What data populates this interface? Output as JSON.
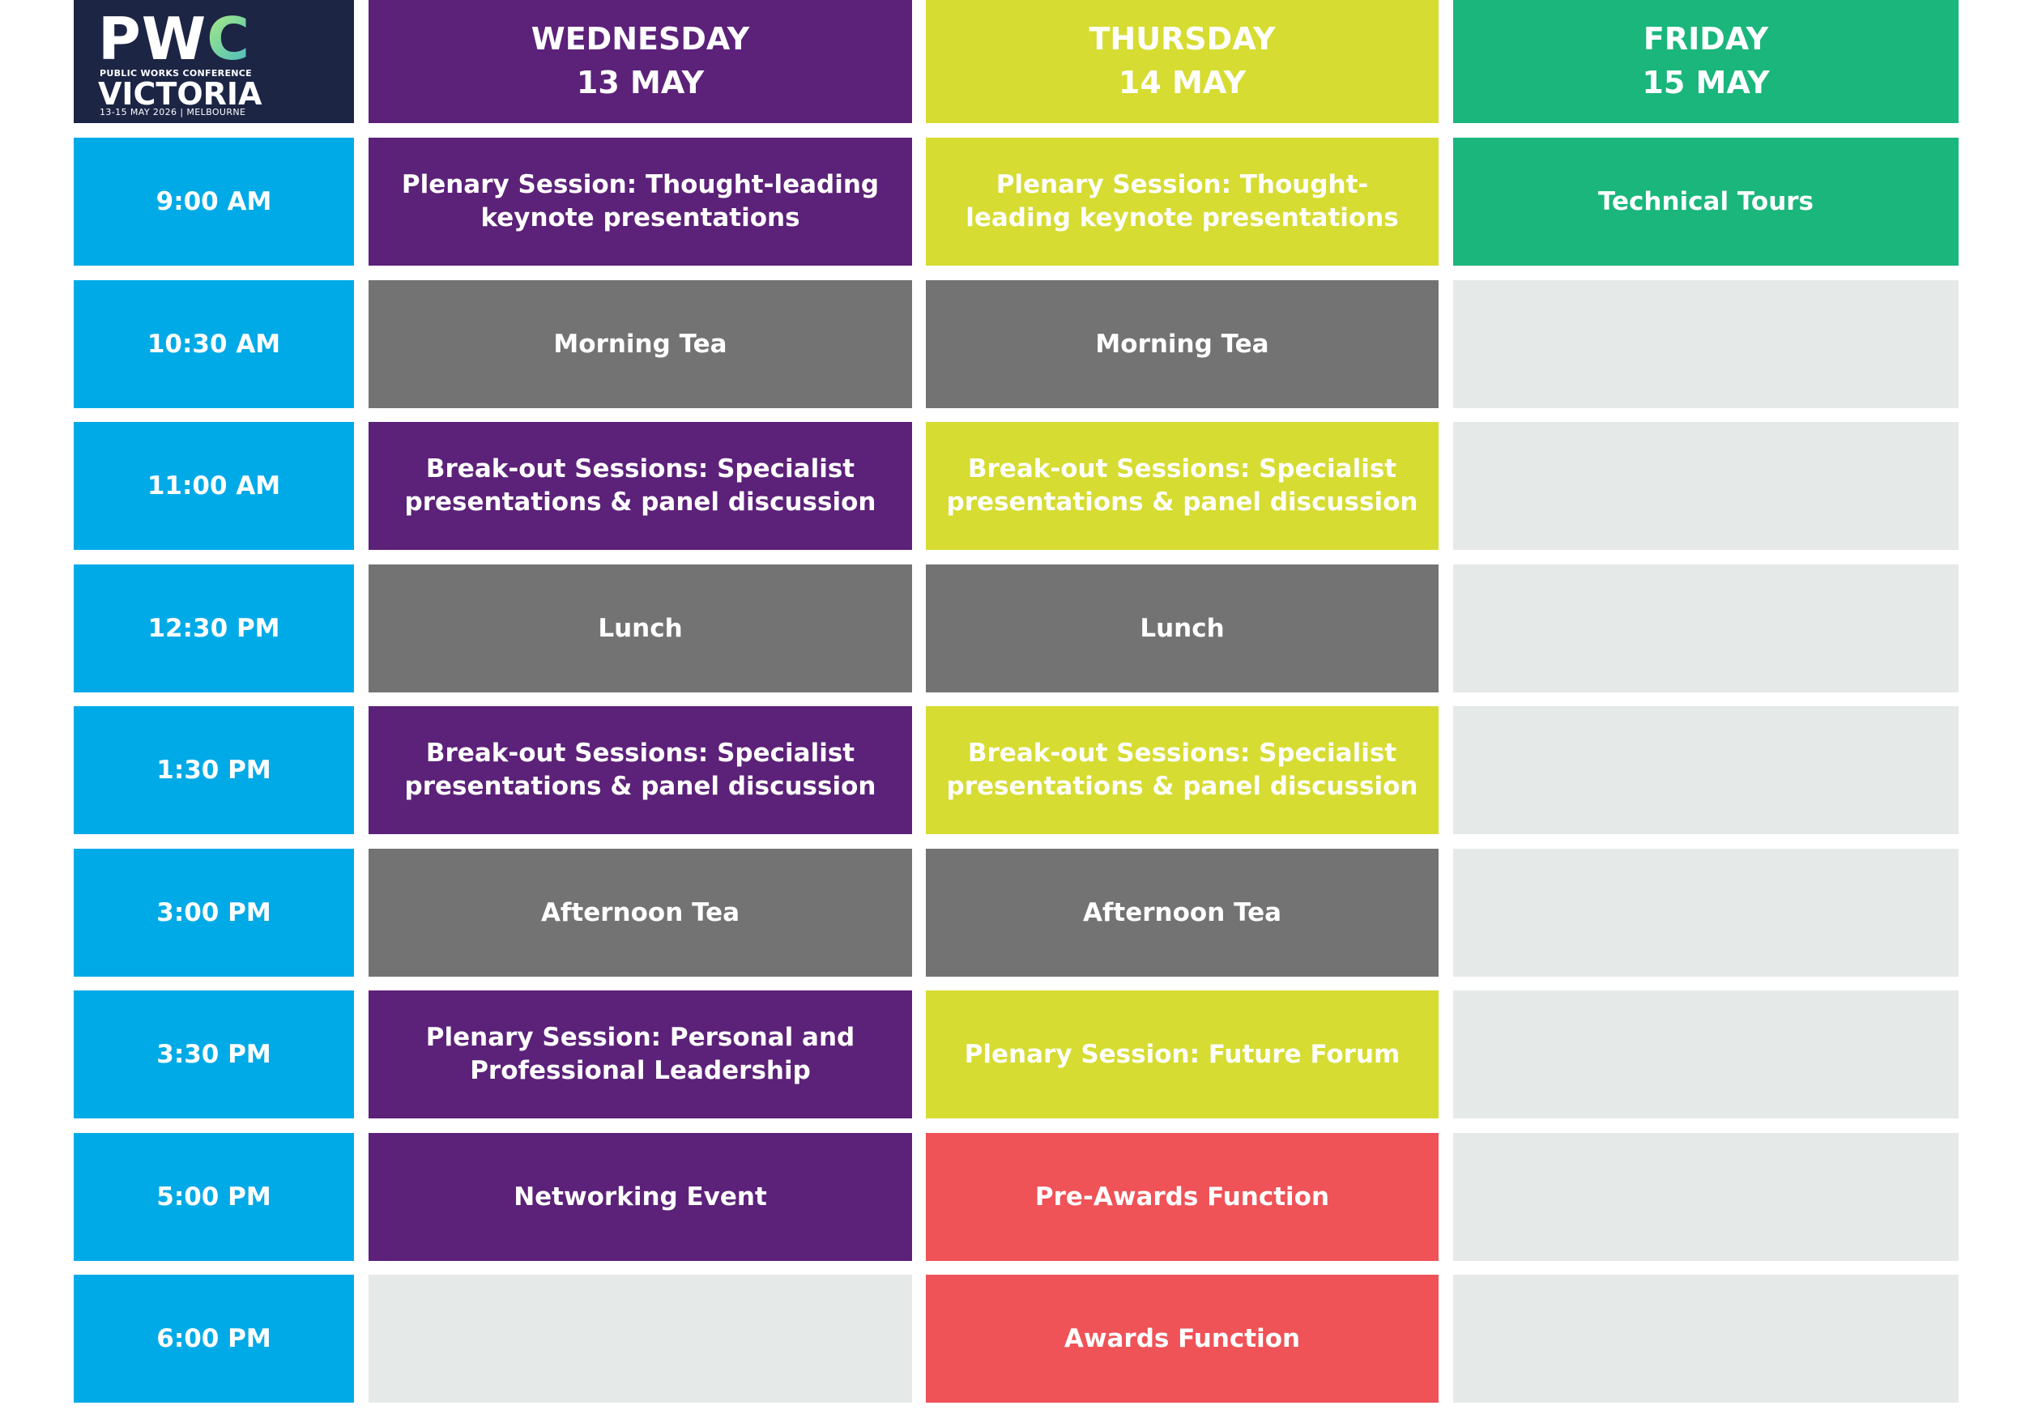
{
  "logo": {
    "title": "PWC",
    "title_prefix": "PW",
    "title_suffix": "C",
    "subtitle": "PUBLIC WORKS CONFERENCE",
    "region": "VICTORIA",
    "dates": "13-15 MAY 2026 | MELBOURNE"
  },
  "colors": {
    "time": "#00aae7",
    "wednesday": "#5c2179",
    "thursday": "#d6dc31",
    "friday": "#1ab67c",
    "break": "#737373",
    "awards": "#ef5257",
    "empty": "#e5e9e8",
    "logo_bg": "#1d2545"
  },
  "days": [
    {
      "weekday": "WEDNESDAY",
      "date": "13 MAY",
      "color": "#5c2179"
    },
    {
      "weekday": "THURSDAY",
      "date": "14 MAY",
      "color": "#d6dc31"
    },
    {
      "weekday": "FRIDAY",
      "date": "15 MAY",
      "color": "#1ab67c"
    }
  ],
  "rows": [
    {
      "time": "9:00 AM",
      "cells": [
        {
          "text": "Plenary Session: Thought-leading keynote presentations",
          "color": "#5c2179"
        },
        {
          "text": "Plenary Session: Thought-leading keynote presentations",
          "color": "#d6dc31"
        },
        {
          "text": "Technical Tours",
          "color": "#1ab67c"
        }
      ]
    },
    {
      "time": "10:30 AM",
      "cells": [
        {
          "text": "Morning Tea",
          "color": "#737373"
        },
        {
          "text": "Morning Tea",
          "color": "#737373"
        },
        {
          "text": "",
          "color": "#e5e9e8"
        }
      ]
    },
    {
      "time": "11:00 AM",
      "cells": [
        {
          "text": "Break-out Sessions: Specialist presentations & panel discussion",
          "color": "#5c2179"
        },
        {
          "text": "Break-out Sessions: Specialist presentations & panel discussion",
          "color": "#d6dc31"
        },
        {
          "text": "",
          "color": "#e5e9e8"
        }
      ]
    },
    {
      "time": "12:30 PM",
      "cells": [
        {
          "text": "Lunch",
          "color": "#737373"
        },
        {
          "text": "Lunch",
          "color": "#737373"
        },
        {
          "text": "",
          "color": "#e5e9e8"
        }
      ]
    },
    {
      "time": "1:30 PM",
      "cells": [
        {
          "text": "Break-out Sessions: Specialist presentations & panel discussion",
          "color": "#5c2179"
        },
        {
          "text": "Break-out Sessions: Specialist presentations & panel discussion",
          "color": "#d6dc31"
        },
        {
          "text": "",
          "color": "#e5e9e8"
        }
      ]
    },
    {
      "time": "3:00 PM",
      "cells": [
        {
          "text": "Afternoon Tea",
          "color": "#737373"
        },
        {
          "text": "Afternoon Tea",
          "color": "#737373"
        },
        {
          "text": "",
          "color": "#e5e9e8"
        }
      ]
    },
    {
      "time": "3:30 PM",
      "cells": [
        {
          "text": "Plenary Session: Personal and Professional Leadership",
          "color": "#5c2179"
        },
        {
          "text": "Plenary Session: Future Forum",
          "color": "#d6dc31"
        },
        {
          "text": "",
          "color": "#e5e9e8"
        }
      ]
    },
    {
      "time": "5:00 PM",
      "cells": [
        {
          "text": "Networking Event",
          "color": "#5c2179"
        },
        {
          "text": "Pre-Awards Function",
          "color": "#ef5257"
        },
        {
          "text": "",
          "color": "#e5e9e8"
        }
      ]
    },
    {
      "time": "6:00 PM",
      "cells": [
        {
          "text": "",
          "color": "#e5e9e8"
        },
        {
          "text": "Awards Function",
          "color": "#ef5257"
        },
        {
          "text": "",
          "color": "#e5e9e8"
        }
      ]
    }
  ]
}
